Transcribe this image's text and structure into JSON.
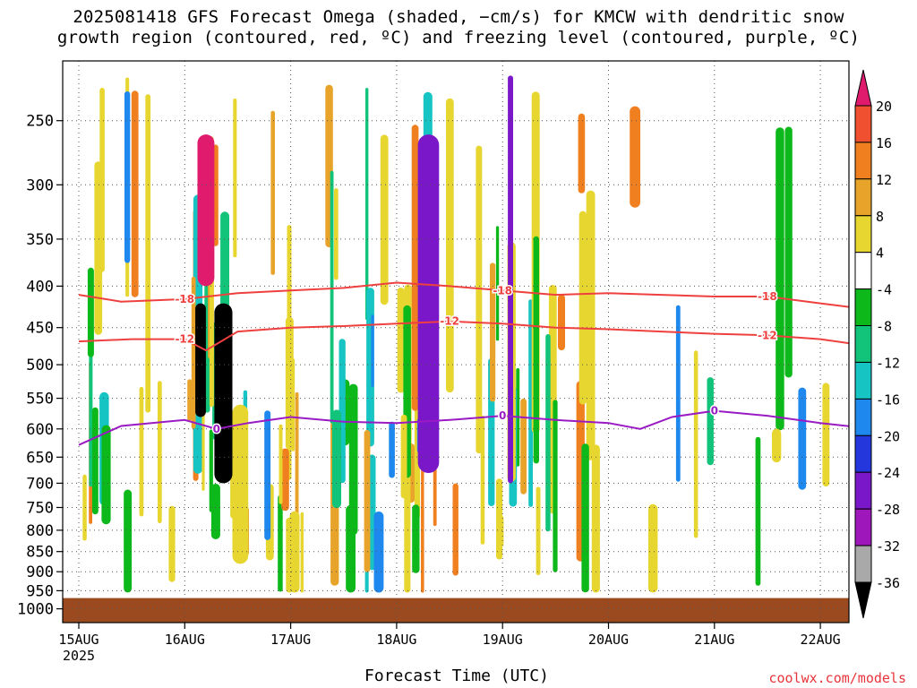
{
  "chart_data": {
    "type": "heatmap",
    "title": "2025081418 GFS Forecast Omega (shaded, −cm/s) for KMCW with dendritic snow",
    "subtitle": "growth region (contoured, red, ºC) and freezing level (contoured, purple, ºC)",
    "xlabel": "Forecast Time (UTC)",
    "ylabel": "",
    "y_scale": "log-pressure",
    "y_ticks": [
      250,
      300,
      350,
      400,
      450,
      500,
      550,
      600,
      650,
      700,
      750,
      800,
      850,
      900,
      950,
      1000
    ],
    "ylim": [
      1000,
      200
    ],
    "x_ticks": [
      "15AUG",
      "16AUG",
      "17AUG",
      "18AUG",
      "19AUG",
      "20AUG",
      "21AUG",
      "22AUG"
    ],
    "x_year_label": "2025",
    "grid": true,
    "colorbar": {
      "labels": [
        "20",
        "16",
        "12",
        "8",
        "4",
        "-4",
        "-8",
        "-12",
        "-16",
        "-20",
        "-24",
        "-28",
        "-32",
        "-36"
      ],
      "colors": [
        "#e01b6e",
        "#f05030",
        "#f0801f",
        "#e8a42a",
        "#e8d630",
        "#ffffff",
        "#0cb81a",
        "#11c47a",
        "#16c4c4",
        "#1e88ee",
        "#2437dc",
        "#7a17c9",
        "#9d17bb",
        "#a9a9a9",
        "#000000"
      ]
    },
    "contours": [
      {
        "label": "-18",
        "color": "#ef4040",
        "points": [
          [
            0,
            410
          ],
          [
            0.4,
            418
          ],
          [
            1,
            415
          ],
          [
            1.5,
            408
          ],
          [
            2,
            405
          ],
          [
            2.5,
            402
          ],
          [
            3,
            396
          ],
          [
            3.5,
            400
          ],
          [
            4,
            405
          ],
          [
            4.5,
            410
          ],
          [
            5,
            408
          ],
          [
            5.5,
            410
          ],
          [
            6,
            412
          ],
          [
            6.5,
            412
          ],
          [
            7,
            420
          ],
          [
            7.5,
            428
          ]
        ]
      },
      {
        "label": "-12",
        "color": "#ef4040",
        "points": [
          [
            0,
            468
          ],
          [
            0.5,
            465
          ],
          [
            1,
            465
          ],
          [
            1.2,
            480
          ],
          [
            1.5,
            455
          ],
          [
            2,
            450
          ],
          [
            2.5,
            448
          ],
          [
            3,
            445
          ],
          [
            3.5,
            442
          ],
          [
            4,
            445
          ],
          [
            4.5,
            450
          ],
          [
            5,
            452
          ],
          [
            5.5,
            455
          ],
          [
            6,
            458
          ],
          [
            6.5,
            460
          ],
          [
            7,
            465
          ],
          [
            7.5,
            475
          ]
        ]
      },
      {
        "label": "0",
        "color": "#9a1bc4",
        "points": [
          [
            0,
            628
          ],
          [
            0.4,
            595
          ],
          [
            1,
            585
          ],
          [
            1.3,
            600
          ],
          [
            1.6,
            590
          ],
          [
            2,
            580
          ],
          [
            2.5,
            588
          ],
          [
            3,
            590
          ],
          [
            3.5,
            585
          ],
          [
            4,
            578
          ],
          [
            4.5,
            585
          ],
          [
            5,
            590
          ],
          [
            5.3,
            600
          ],
          [
            5.6,
            580
          ],
          [
            6,
            570
          ],
          [
            6.5,
            578
          ],
          [
            7,
            590
          ],
          [
            7.5,
            600
          ]
        ]
      }
    ],
    "shading": [
      {
        "x": [
          1.12,
          1.28
        ],
        "p": [
          260,
          400
        ],
        "value": 24
      },
      {
        "x": [
          1.28,
          1.45
        ],
        "p": [
          420,
          700
        ],
        "value": -36
      },
      {
        "x": [
          1.1,
          1.2
        ],
        "p": [
          420,
          580
        ],
        "value": -36
      },
      {
        "x": [
          1.45,
          1.6
        ],
        "p": [
          560,
          880
        ],
        "value": 4
      },
      {
        "x": [
          3.2,
          3.4
        ],
        "p": [
          260,
          680
        ],
        "value": -24
      },
      {
        "x": [
          4.05,
          4.1
        ],
        "p": [
          220,
          700
        ],
        "value": -24
      },
      {
        "x": [
          5.2,
          5.3
        ],
        "p": [
          240,
          320
        ],
        "value": 14
      },
      {
        "x": [
          0,
          7.5
        ],
        "p": [
          970,
          1000
        ],
        "value": "ground"
      }
    ]
  },
  "credit": "coolwx.com/models"
}
